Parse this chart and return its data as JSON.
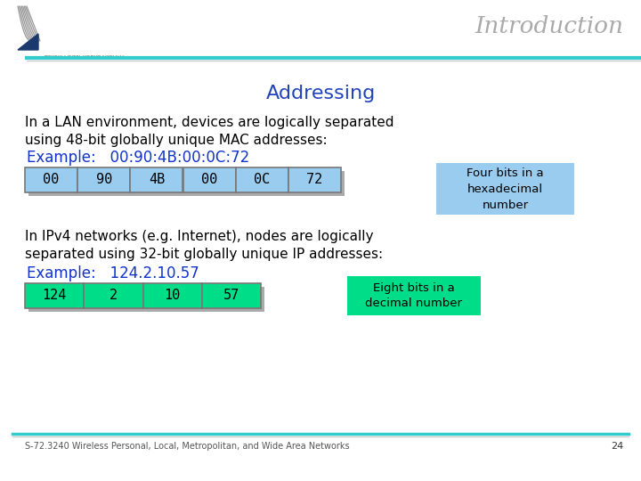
{
  "title": "Introduction",
  "subtitle": "Addressing",
  "slide_bg": "#ffffff",
  "title_color": "#aaaaaa",
  "subtitle_color": "#2244bb",
  "body_text_color": "#000000",
  "example_color": "#1133cc",
  "header_line_color1": "#33cccc",
  "header_line_color2": "#cccccc",
  "footer_line_color1": "#33cccc",
  "footer_line_color2": "#cccccc",
  "para1_line1": "In a LAN environment, devices are logically separated",
  "para1_line2": "using 48-bit globally unique MAC addresses:",
  "example1_label": "Example:   00:90:4B:00:0C:72",
  "mac_cells": [
    "00",
    "90",
    "4B",
    "00",
    "0C",
    "72"
  ],
  "mac_cell_color": "#99ccee",
  "mac_shadow_color": "#aaaaaa",
  "mac_box_note": "Four bits in a\nhexadecimal\nnumber",
  "mac_box_color": "#99ccee",
  "para2_line1": "In IPv4 networks (e.g. Internet), nodes are logically",
  "para2_line2": "separated using 32-bit globally unique IP addresses:",
  "example2_label": "Example:   124.2.10.57",
  "ip_cells": [
    "124",
    "2",
    "10",
    "57"
  ],
  "ip_cell_color": "#00dd88",
  "ip_shadow_color": "#aaaaaa",
  "ip_box_note": "Eight bits in a\ndecimal number",
  "ip_box_color": "#00dd88",
  "footer_text": "S-72.3240 Wireless Personal, Local, Metropolitan, and Wide Area Networks",
  "footer_page": "24",
  "logo_text": "TEKNILLINEN KORKEAKOULU"
}
